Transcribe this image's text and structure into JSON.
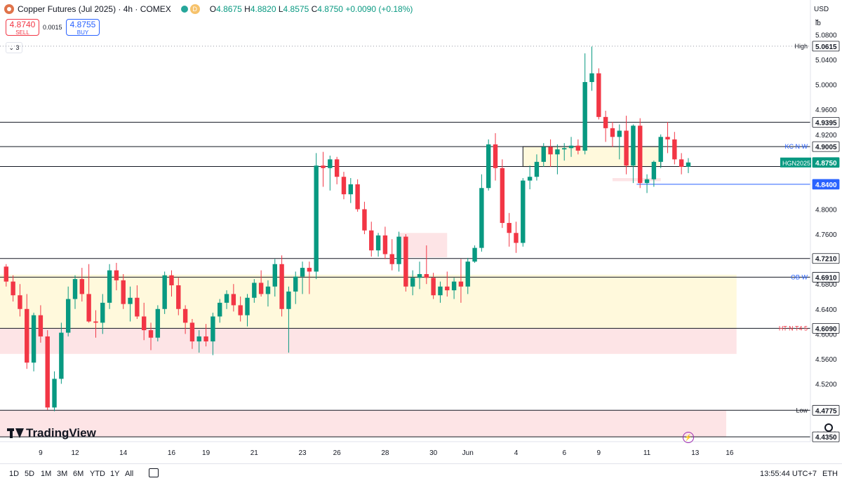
{
  "header": {
    "title": "Copper Futures (Jul 2025) · 4h · COMEX",
    "badge": "D",
    "ohlc": {
      "o_label": "O",
      "o": "4.8675",
      "h_label": "H",
      "h": "4.8820",
      "l_label": "L",
      "l": "4.8575",
      "c_label": "C",
      "c": "4.8750",
      "change": "+0.0090 (+0.18%)"
    }
  },
  "trade": {
    "sell_price": "4.8740",
    "sell_label": "SELL",
    "spread": "0.0015",
    "buy_price": "4.8755",
    "buy_label": "BUY"
  },
  "indicator_collapse": "3",
  "logo_text": "TradingView",
  "axis_unit": {
    "currency": "USD",
    "unit": "lb"
  },
  "bottom_bar": {
    "timeframes": [
      "1D",
      "5D",
      "1M",
      "3M",
      "6M",
      "YTD",
      "1Y",
      "All"
    ],
    "clock": "13:55:44 UTC+7",
    "session": "ETH"
  },
  "colors": {
    "up": "#089981",
    "down": "#f23645",
    "blue_line": "#2962ff",
    "zone_yellow": "#fff9dc",
    "zone_red": "#fde4e6"
  },
  "chart_data": {
    "type": "candlestick",
    "title": "Copper Futures (Jul 2025) · 4h · COMEX",
    "symbol": "HGN2025",
    "last_price": "4.8750",
    "ylim": [
      4.435,
      5.085
    ],
    "y_ticks": [
      "5.0800",
      "5.0400",
      "5.0000",
      "4.9600",
      "4.9200",
      "4.8800",
      "4.8400",
      "4.8000",
      "4.7600",
      "4.7200",
      "4.6800",
      "4.6400",
      "4.6000",
      "4.5600",
      "4.5200",
      "4.4800",
      "4.4400"
    ],
    "x_ticks": [
      {
        "label": "9",
        "bar": 5
      },
      {
        "label": "12",
        "bar": 10
      },
      {
        "label": "14",
        "bar": 17
      },
      {
        "label": "16",
        "bar": 24
      },
      {
        "label": "19",
        "bar": 29
      },
      {
        "label": "21",
        "bar": 36
      },
      {
        "label": "23",
        "bar": 43
      },
      {
        "label": "26",
        "bar": 48
      },
      {
        "label": "28",
        "bar": 55
      },
      {
        "label": "30",
        "bar": 62
      },
      {
        "label": "Jun",
        "bar": 67
      },
      {
        "label": "4",
        "bar": 74
      },
      {
        "label": "6",
        "bar": 81
      },
      {
        "label": "9",
        "bar": 86
      },
      {
        "label": "11",
        "bar": 93
      },
      {
        "label": "13",
        "bar": 100
      },
      {
        "label": "16",
        "bar": 105
      }
    ],
    "levels": [
      {
        "price": 5.0615,
        "label": "High",
        "kind": "dotted"
      },
      {
        "price": 4.9395,
        "label": "",
        "kind": "solid"
      },
      {
        "price": 4.9005,
        "label": "KC N W",
        "kind": "solid"
      },
      {
        "price": 4.8685,
        "label": "",
        "kind": "solid"
      },
      {
        "price": 4.84,
        "label": "",
        "kind": "blue"
      },
      {
        "price": 4.721,
        "label": "",
        "kind": "solid"
      },
      {
        "price": 4.691,
        "label": "OB W",
        "kind": "solid"
      },
      {
        "price": 4.609,
        "label": "HT N T4 5",
        "kind": "solid"
      },
      {
        "price": 4.4775,
        "label": "Low",
        "kind": "solid"
      },
      {
        "price": 4.435,
        "label": "",
        "kind": "solid"
      }
    ],
    "zones": [
      {
        "from_bar": -1,
        "to_bar": 106,
        "top": 4.695,
        "bottom": 4.609,
        "color": "yellow"
      },
      {
        "from_bar": -1,
        "to_bar": 106,
        "top": 4.609,
        "bottom": 4.568,
        "color": "red"
      },
      {
        "from_bar": -1,
        "to_bar": 104.5,
        "top": 4.4775,
        "bottom": 4.435,
        "color": "red"
      },
      {
        "from_bar": 57,
        "to_bar": 64,
        "top": 4.762,
        "bottom": 4.723,
        "color": "red"
      },
      {
        "from_bar": 75,
        "to_bar": 95,
        "top": 4.9005,
        "bottom": 4.8685,
        "color": "yellow"
      },
      {
        "from_bar": 88,
        "to_bar": 95,
        "top": 4.85,
        "bottom": 4.845,
        "color": "red"
      }
    ],
    "price_labels": [
      {
        "price": 5.0615,
        "text": "5.0615",
        "style": "plain"
      },
      {
        "price": 4.9395,
        "text": "4.9395",
        "style": "plain"
      },
      {
        "price": 4.9005,
        "text": "4.9005",
        "style": "plain"
      },
      {
        "price": 4.875,
        "text": "4.8750",
        "style": "last",
        "tag": "HGN2025"
      },
      {
        "price": 4.84,
        "text": "4.8400",
        "style": "blue"
      },
      {
        "price": 4.721,
        "text": "4.7210",
        "style": "plain"
      },
      {
        "price": 4.691,
        "text": "4.6910",
        "style": "plain"
      },
      {
        "price": 4.609,
        "text": "4.6090",
        "style": "plain"
      },
      {
        "price": 4.4775,
        "text": "4.4775",
        "style": "plain"
      },
      {
        "price": 4.435,
        "text": "4.4350",
        "style": "plain"
      }
    ],
    "ohlc_columns": [
      "open",
      "high",
      "low",
      "close"
    ],
    "ohlc": [
      [
        4.708,
        4.712,
        4.676,
        4.684
      ],
      [
        4.684,
        4.694,
        4.652,
        4.662
      ],
      [
        4.662,
        4.68,
        4.628,
        4.64
      ],
      [
        4.64,
        4.664,
        4.544,
        4.554
      ],
      [
        4.554,
        4.634,
        4.54,
        4.63
      ],
      [
        4.63,
        4.646,
        4.586,
        4.596
      ],
      [
        4.596,
        4.606,
        4.478,
        4.482
      ],
      [
        4.482,
        4.54,
        4.476,
        4.528
      ],
      [
        4.528,
        4.618,
        4.52,
        4.602
      ],
      [
        4.602,
        4.676,
        4.596,
        4.656
      ],
      [
        4.656,
        4.694,
        4.64,
        4.688
      ],
      [
        4.688,
        4.706,
        4.652,
        4.664
      ],
      [
        4.664,
        4.712,
        4.618,
        4.62
      ],
      [
        4.62,
        4.638,
        4.594,
        4.618
      ],
      [
        4.618,
        4.664,
        4.6,
        4.65
      ],
      [
        4.65,
        4.712,
        4.64,
        4.702
      ],
      [
        4.702,
        4.714,
        4.67,
        4.686
      ],
      [
        4.686,
        4.696,
        4.64,
        4.648
      ],
      [
        4.648,
        4.676,
        4.62,
        4.658
      ],
      [
        4.658,
        4.678,
        4.624,
        4.628
      ],
      [
        4.628,
        4.65,
        4.59,
        4.606
      ],
      [
        4.606,
        4.618,
        4.574,
        4.594
      ],
      [
        4.594,
        4.646,
        4.588,
        4.64
      ],
      [
        4.64,
        4.7,
        4.632,
        4.694
      ],
      [
        4.694,
        4.702,
        4.66,
        4.678
      ],
      [
        4.678,
        4.69,
        4.63,
        4.64
      ],
      [
        4.64,
        4.646,
        4.6,
        4.618
      ],
      [
        4.618,
        4.624,
        4.576,
        4.588
      ],
      [
        4.588,
        4.606,
        4.57,
        4.596
      ],
      [
        4.596,
        4.616,
        4.58,
        4.588
      ],
      [
        4.588,
        4.634,
        4.566,
        4.628
      ],
      [
        4.628,
        4.656,
        4.618,
        4.65
      ],
      [
        4.65,
        4.67,
        4.64,
        4.664
      ],
      [
        4.664,
        4.68,
        4.636,
        4.646
      ],
      [
        4.646,
        4.66,
        4.62,
        4.63
      ],
      [
        4.63,
        4.664,
        4.612,
        4.658
      ],
      [
        4.658,
        4.688,
        4.65,
        4.682
      ],
      [
        4.682,
        4.702,
        4.66,
        4.664
      ],
      [
        4.664,
        4.686,
        4.644,
        4.676
      ],
      [
        4.676,
        4.72,
        4.66,
        4.712
      ],
      [
        4.712,
        4.726,
        4.628,
        4.64
      ],
      [
        4.64,
        4.676,
        4.57,
        4.668
      ],
      [
        4.668,
        4.7,
        4.648,
        4.692
      ],
      [
        4.692,
        4.716,
        4.664,
        4.706
      ],
      [
        4.706,
        4.716,
        4.664,
        4.7
      ],
      [
        4.7,
        4.89,
        4.688,
        4.87
      ],
      [
        4.87,
        4.892,
        4.836,
        4.866
      ],
      [
        4.866,
        4.886,
        4.83,
        4.88
      ],
      [
        4.88,
        4.884,
        4.84,
        4.852
      ],
      [
        4.852,
        4.86,
        4.816,
        4.824
      ],
      [
        4.824,
        4.85,
        4.81,
        4.84
      ],
      [
        4.84,
        4.848,
        4.796,
        4.8
      ],
      [
        4.8,
        4.812,
        4.76,
        4.766
      ],
      [
        4.766,
        4.78,
        4.724,
        4.734
      ],
      [
        4.734,
        4.762,
        4.724,
        4.758
      ],
      [
        4.758,
        4.772,
        4.72,
        4.728
      ],
      [
        4.728,
        4.752,
        4.702,
        4.712
      ],
      [
        4.712,
        4.764,
        4.7,
        4.756
      ],
      [
        4.756,
        4.76,
        4.668,
        4.676
      ],
      [
        4.676,
        4.702,
        4.662,
        4.69
      ],
      [
        4.69,
        4.716,
        4.672,
        4.696
      ],
      [
        4.696,
        4.742,
        4.68,
        4.69
      ],
      [
        4.69,
        4.698,
        4.656,
        4.662
      ],
      [
        4.662,
        4.684,
        4.65,
        4.676
      ],
      [
        4.676,
        4.7,
        4.66,
        4.67
      ],
      [
        4.67,
        4.69,
        4.656,
        4.684
      ],
      [
        4.684,
        4.72,
        4.65,
        4.676
      ],
      [
        4.676,
        4.722,
        4.664,
        4.716
      ],
      [
        4.716,
        4.742,
        4.714,
        4.738
      ],
      [
        4.738,
        4.856,
        4.732,
        4.834
      ],
      [
        4.834,
        4.912,
        4.83,
        4.904
      ],
      [
        4.904,
        4.922,
        4.846,
        4.866
      ],
      [
        4.866,
        4.88,
        4.77,
        4.778
      ],
      [
        4.778,
        4.794,
        4.74,
        4.762
      ],
      [
        4.762,
        4.78,
        4.73,
        4.746
      ],
      [
        4.746,
        4.85,
        4.74,
        4.846
      ],
      [
        4.846,
        4.87,
        4.832,
        4.852
      ],
      [
        4.852,
        4.888,
        4.846,
        4.876
      ],
      [
        4.876,
        4.906,
        4.868,
        4.9
      ],
      [
        4.9,
        4.912,
        4.868,
        4.888
      ],
      [
        4.888,
        4.904,
        4.856,
        4.896
      ],
      [
        4.896,
        4.906,
        4.878,
        4.898
      ],
      [
        4.898,
        4.916,
        4.884,
        4.902
      ],
      [
        4.902,
        4.912,
        4.888,
        4.894
      ],
      [
        4.894,
        5.05,
        4.888,
        5.004
      ],
      [
        5.004,
        5.061,
        4.99,
        5.018
      ],
      [
        5.018,
        5.026,
        4.944,
        4.948
      ],
      [
        4.948,
        4.958,
        4.908,
        4.93
      ],
      [
        4.93,
        4.94,
        4.9,
        4.916
      ],
      [
        4.916,
        4.936,
        4.88,
        4.926
      ],
      [
        4.926,
        4.95,
        4.856,
        4.87
      ],
      [
        4.87,
        4.936,
        4.842,
        4.934
      ],
      [
        4.934,
        4.946,
        4.834,
        4.842
      ],
      [
        4.842,
        4.856,
        4.826,
        4.848
      ],
      [
        4.848,
        4.878,
        4.836,
        4.876
      ],
      [
        4.876,
        4.92,
        4.866,
        4.916
      ],
      [
        4.916,
        4.94,
        4.89,
        4.912
      ],
      [
        4.912,
        4.924,
        4.872,
        4.88
      ],
      [
        4.88,
        4.89,
        4.856,
        4.868
      ],
      [
        4.868,
        4.882,
        4.858,
        4.875
      ]
    ]
  }
}
